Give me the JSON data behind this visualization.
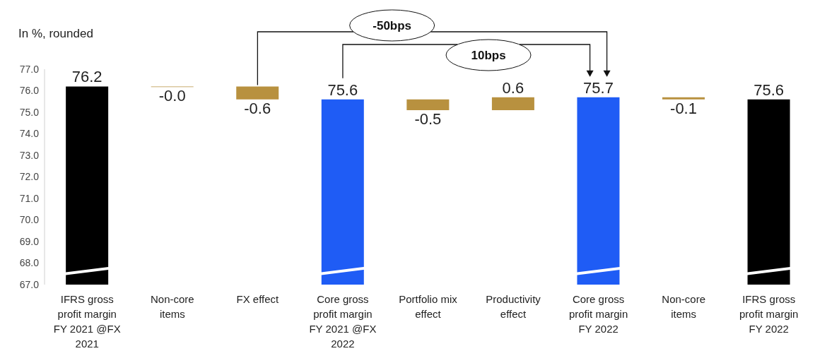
{
  "chart_data": {
    "type": "bar",
    "ylabel": "In %, rounded",
    "categories": [
      "IFRS gross profit margin FY 2021 @FX 2021",
      "Non-core items",
      "FX effect",
      "Core gross profit margin FY 2021 @FX 2022",
      "Portfolio mix effect",
      "Productivity effect",
      "Core gross profit margin FY 2022",
      "Non-core items",
      "IFRS gross profit margin FY 2022"
    ],
    "values": [
      76.2,
      -0.03,
      -0.6,
      75.6,
      -0.5,
      0.6,
      75.7,
      -0.1,
      75.6
    ],
    "base": [
      null,
      76.2,
      76.2,
      null,
      75.6,
      75.1,
      null,
      75.7,
      null
    ],
    "value_labels": [
      "76.2",
      "-0.0",
      "-0.6",
      "75.6",
      "-0.5",
      "0.6",
      "75.7",
      "-0.1",
      "75.6"
    ],
    "colors": [
      "#000000",
      "#b8913f",
      "#b8913f",
      "#1f5cf5",
      "#b8913f",
      "#b8913f",
      "#1f5cf5",
      "#b8913f",
      "#000000"
    ],
    "ylim": [
      67,
      77
    ],
    "yticks": [
      {
        "value": 67,
        "label": "67.0"
      },
      {
        "value": 68,
        "label": "68.0"
      },
      {
        "value": 69,
        "label": "69.0"
      },
      {
        "value": 70,
        "label": "70.0"
      },
      {
        "value": 71,
        "label": "71.0"
      },
      {
        "value": 72,
        "label": "72.0"
      },
      {
        "value": 73,
        "label": "73.0"
      },
      {
        "value": 74,
        "label": "74.0"
      },
      {
        "value": 75,
        "label": "75.0"
      },
      {
        "value": 76,
        "label": "76.0"
      },
      {
        "value": 77,
        "label": "77.0"
      }
    ],
    "annotations": [
      "-50bps",
      "10bps"
    ],
    "grid": false,
    "legend": false
  }
}
